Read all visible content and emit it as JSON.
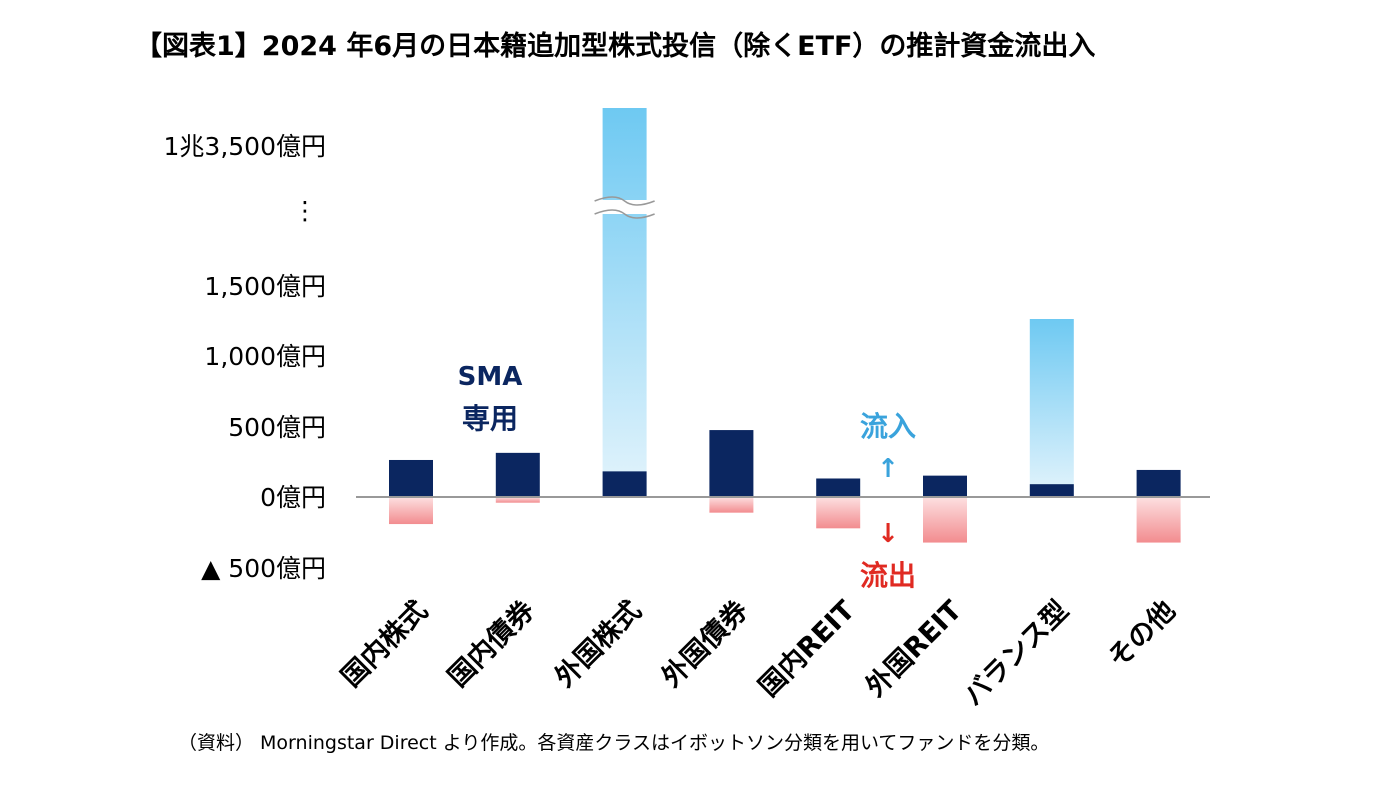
{
  "title": "【図表1】2024 年6月の日本籍追加型株式投信（除くETF）の推計資金流出入",
  "source": "（資料） Morningstar Direct より作成。各資産クラスはイボットソン分類を用いてファンドを分類。",
  "colors": {
    "sma": "#0b2660",
    "inflow_top": "#6ec9f2",
    "inflow_bottom": "#e4f4fc",
    "outflow_top": "#fde0e1",
    "outflow_bottom": "#f28c8f",
    "axis": "#999999",
    "label_inflow": "#3aa3dc",
    "label_outflow": "#e02a22"
  },
  "chart_data": {
    "type": "bar",
    "unit": "億円",
    "categories": [
      "国内株式",
      "国内債券",
      "外国株式",
      "外国債券",
      "国内REIT",
      "外国REIT",
      "バランス型",
      "その他"
    ],
    "series": [
      {
        "name": "SMA専用",
        "values": [
          260,
          310,
          180,
          470,
          130,
          150,
          90,
          190
        ]
      },
      {
        "name": "流入",
        "values": [
          0,
          0,
          13500,
          0,
          0,
          0,
          1250,
          0
        ]
      },
      {
        "name": "流出",
        "values": [
          -190,
          -40,
          0,
          -110,
          -220,
          -320,
          0,
          -320
        ]
      }
    ],
    "y_tick_labels": [
      "1兆3,500億円",
      "⋮",
      "1,500億円",
      "1,000億円",
      "500億円",
      "0億円",
      "▲ 500億円"
    ],
    "ylim": [
      -500,
      13500
    ],
    "axis_break": [
      1750,
      13000
    ],
    "annotations": {
      "sma_label": [
        "SMA",
        "専用"
      ],
      "inflow_label": "流入",
      "inflow_arrow": "↑",
      "outflow_label": "流出",
      "outflow_arrow": "↓"
    }
  }
}
